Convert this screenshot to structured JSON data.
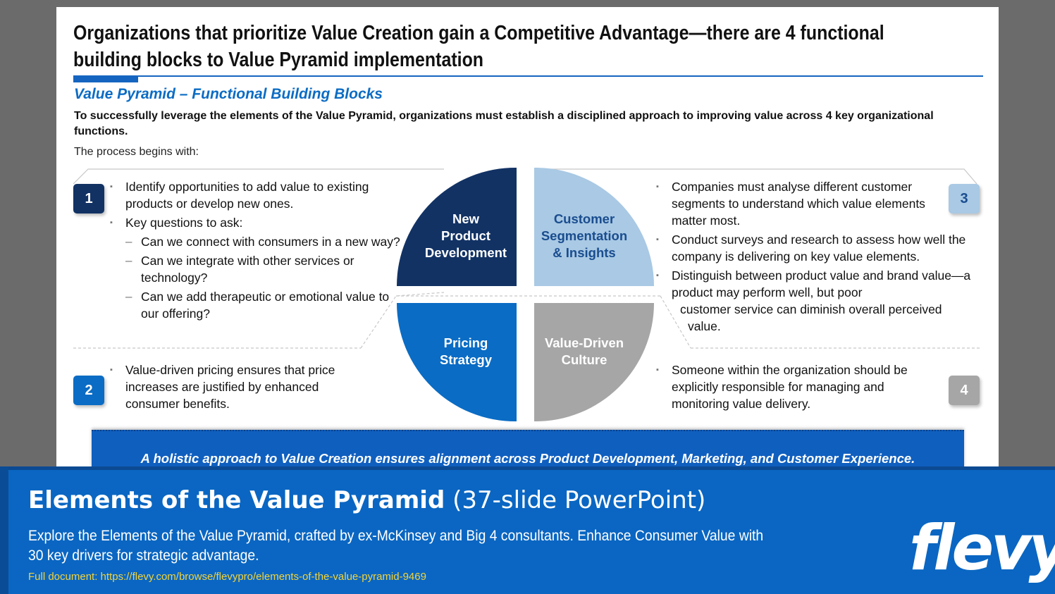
{
  "slide": {
    "title": "Organizations that prioritize Value Creation gain a Competitive Advantage—there are 4 functional building blocks to Value Pyramid implementation",
    "title_line1": "Organizations that prioritize Value Creation gain a Competitive Advantage—there are 4 functional",
    "title_line2": "building blocks to Value Pyramid implementation",
    "subtitle": "Value Pyramid – Functional Building Blocks",
    "intro": "To successfully leverage the elements of the Value Pyramid, organizations must establish a disciplined approach to improving value across 4 key organizational functions.",
    "begins": "The process begins with:",
    "quadrants": [
      {
        "number": "1",
        "label_lines": [
          "New",
          "Product",
          "Development"
        ],
        "color": "#123264"
      },
      {
        "number": "2",
        "label_lines": [
          "Pricing",
          "Strategy"
        ],
        "color": "#0a6cc4"
      },
      {
        "number": "3",
        "label_lines": [
          "Customer",
          "Segmentation",
          "& Insights"
        ],
        "color": "#a9c9e4"
      },
      {
        "number": "4",
        "label_lines": [
          "Value-Driven",
          "Culture"
        ],
        "color": "#a6a6a6"
      }
    ],
    "block1": {
      "b1": "Identify opportunities to add value to existing products or develop new ones.",
      "b2": "Key questions to ask:",
      "q1": "Can we connect with consumers in a new way?",
      "q2": "Can we integrate with other services or technology?",
      "q3": "Can we add therapeutic or emotional value to our offering?"
    },
    "block2": {
      "b1": "Value-driven pricing ensures that price increases are justified by enhanced consumer benefits."
    },
    "block3": {
      "b1": "Companies must analyse different customer segments to understand which value elements matter most.",
      "b2": "Conduct surveys and research to assess how well the company is delivering on key value elements.",
      "b3a": "Distinguish between product value and brand value—a product may perform well, but poor",
      "b3b": "customer service can diminish overall perceived",
      "b3c": "value."
    },
    "block4": {
      "b1": "Someone within the organization should be explicitly responsible for managing and monitoring value delivery."
    },
    "banner": "A holistic approach to Value Creation ensures alignment across Product Development, Marketing, and Customer Experience."
  },
  "footer": {
    "title_bold": "Elements of the Value Pyramid",
    "title_light": "(37-slide PowerPoint)",
    "description": "Explore the Elements of the Value Pyramid, crafted by ex-McKinsey and Big 4 consultants. Enhance Consumer Value with 30 key drivers for strategic advantage.",
    "link": "Full document: https://flevy.com/browse/flevypro/elements-of-the-value-pyramid-9469",
    "logo": "flevy"
  }
}
